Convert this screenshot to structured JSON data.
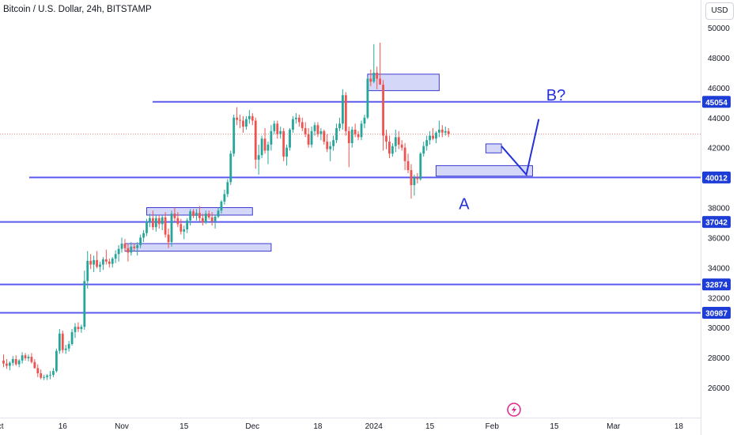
{
  "header": {
    "symbol": "Bitcoin / U.S. Dollar",
    "timeframe": "24h",
    "exchange": "BITSTAMP",
    "currency_button": "USD"
  },
  "colors": {
    "up": "#26a69a",
    "down": "#ef5350",
    "level_line": "#5b5bf0",
    "level_label_bg": "#1e3dd6",
    "annotation": "#2232d8",
    "zone_fill": "#c7caf7",
    "zone_stroke": "#3c3cd0",
    "current_price_line": "#ef5350",
    "axis_text": "#131722",
    "bolt_icon": "#e0218a"
  },
  "icons": {
    "bottom_marker": "lightning-bolt-icon"
  },
  "chart_data": {
    "type": "candlestick",
    "title": "",
    "ylim": [
      24500,
      51200
    ],
    "y_ticks": [
      26000,
      28000,
      30000,
      32000,
      34000,
      36000,
      38000,
      40000,
      42000,
      44000,
      46000,
      48000,
      50000
    ],
    "x_ticks": [
      "ct",
      "16",
      "Nov",
      "15",
      "Dec",
      "18",
      "2024",
      "15",
      "Feb",
      "15",
      "Mar",
      "18"
    ],
    "level_lines": [
      45054,
      40012,
      37042,
      32874,
      30987
    ],
    "current_price": 42900,
    "zones": [
      {
        "from_index": 117,
        "to_index": 140,
        "low": 45800,
        "high": 46900
      },
      {
        "from_index": 46,
        "to_index": 80,
        "low": 37500,
        "high": 38000
      },
      {
        "from_index": 39,
        "to_index": 86,
        "low": 35100,
        "high": 35600
      },
      {
        "from_index": 139,
        "to_index": 170,
        "low": 40100,
        "high": 40800
      },
      {
        "from_index": 155,
        "to_index": 160,
        "low": 41650,
        "high": 42250
      }
    ],
    "annotations": [
      "A",
      "B?"
    ],
    "projection_path": [
      [
        160,
        42100
      ],
      [
        168,
        40200
      ],
      [
        172,
        43900
      ]
    ],
    "candles": [
      [
        27800,
        28200,
        27350,
        27600
      ],
      [
        27600,
        27900,
        27250,
        27450
      ],
      [
        27450,
        27750,
        27150,
        27650
      ],
      [
        27650,
        28100,
        27450,
        27900
      ],
      [
        27900,
        28150,
        27450,
        27550
      ],
      [
        27550,
        27900,
        27350,
        27800
      ],
      [
        27800,
        28350,
        27600,
        28150
      ],
      [
        28150,
        28300,
        27800,
        27950
      ],
      [
        27950,
        28200,
        27750,
        28050
      ],
      [
        28050,
        28300,
        27600,
        27700
      ],
      [
        27700,
        27900,
        27250,
        27300
      ],
      [
        27300,
        27550,
        26700,
        26950
      ],
      [
        26950,
        27200,
        26550,
        26650
      ],
      [
        26650,
        26850,
        26500,
        26700
      ],
      [
        26700,
        26900,
        26500,
        26800
      ],
      [
        26800,
        27100,
        26550,
        26850
      ],
      [
        26850,
        27300,
        26700,
        27100
      ],
      [
        27100,
        28600,
        27000,
        28450
      ],
      [
        28450,
        29900,
        28250,
        29600
      ],
      [
        29600,
        29800,
        28300,
        28500
      ],
      [
        28500,
        28850,
        28250,
        28600
      ],
      [
        28600,
        29100,
        28400,
        28900
      ],
      [
        28900,
        29900,
        28800,
        29700
      ],
      [
        29700,
        30300,
        29300,
        30050
      ],
      [
        30050,
        30350,
        29700,
        29900
      ],
      [
        29900,
        30200,
        29650,
        30050
      ],
      [
        30050,
        33800,
        29850,
        33100
      ],
      [
        33100,
        35100,
        32600,
        34450
      ],
      [
        34450,
        34900,
        33900,
        34200
      ],
      [
        34200,
        34800,
        33700,
        34500
      ],
      [
        34500,
        35100,
        33950,
        34050
      ],
      [
        34050,
        34400,
        33700,
        34200
      ],
      [
        34200,
        34700,
        33850,
        34550
      ],
      [
        34550,
        35200,
        34200,
        34400
      ],
      [
        34400,
        34600,
        34000,
        34250
      ],
      [
        34250,
        34700,
        34000,
        34600
      ],
      [
        34600,
        35150,
        34300,
        34900
      ],
      [
        34900,
        35500,
        34400,
        35250
      ],
      [
        35250,
        36000,
        35000,
        35600
      ],
      [
        35600,
        35900,
        35050,
        35300
      ],
      [
        35300,
        35600,
        34400,
        35000
      ],
      [
        35000,
        35700,
        34800,
        35400
      ],
      [
        35400,
        35600,
        35100,
        35300
      ],
      [
        35300,
        35700,
        34800,
        35500
      ],
      [
        35500,
        36200,
        35300,
        36000
      ],
      [
        36000,
        36500,
        35700,
        36300
      ],
      [
        36300,
        37250,
        36100,
        37050
      ],
      [
        37050,
        37600,
        36700,
        37300
      ],
      [
        37300,
        37800,
        36500,
        36700
      ],
      [
        36700,
        37500,
        36400,
        37300
      ],
      [
        37300,
        37500,
        36600,
        36900
      ],
      [
        36900,
        37500,
        36500,
        37350
      ],
      [
        37350,
        37700,
        36000,
        36200
      ],
      [
        36200,
        36600,
        35300,
        35700
      ],
      [
        35700,
        37800,
        35400,
        37600
      ],
      [
        37600,
        38000,
        37100,
        37300
      ],
      [
        37300,
        37700,
        36700,
        36900
      ],
      [
        36900,
        37250,
        36200,
        36400
      ],
      [
        36400,
        36800,
        35900,
        36550
      ],
      [
        36550,
        37300,
        36300,
        37150
      ],
      [
        37150,
        37900,
        36800,
        37750
      ],
      [
        37750,
        37900,
        37300,
        37450
      ],
      [
        37450,
        37900,
        37150,
        37650
      ],
      [
        37650,
        38100,
        37100,
        37300
      ],
      [
        37300,
        37600,
        36800,
        37000
      ],
      [
        37000,
        37800,
        36900,
        37600
      ],
      [
        37600,
        37800,
        37200,
        37350
      ],
      [
        37350,
        37700,
        36800,
        37100
      ],
      [
        37100,
        37500,
        36600,
        37400
      ],
      [
        37400,
        38000,
        37300,
        37800
      ],
      [
        37800,
        38500,
        37600,
        38400
      ],
      [
        38400,
        39200,
        38200,
        38900
      ],
      [
        38900,
        39900,
        38700,
        39700
      ],
      [
        39700,
        41800,
        39500,
        41600
      ],
      [
        41600,
        44200,
        41400,
        44000
      ],
      [
        44000,
        44700,
        43500,
        43850
      ],
      [
        43850,
        44200,
        43300,
        43800
      ],
      [
        43800,
        44100,
        43000,
        43400
      ],
      [
        43400,
        44100,
        43200,
        43900
      ],
      [
        43900,
        44500,
        43600,
        44100
      ],
      [
        44100,
        44300,
        43500,
        43800
      ],
      [
        43800,
        44000,
        40600,
        41200
      ],
      [
        41200,
        42200,
        40200,
        41500
      ],
      [
        41500,
        42800,
        41300,
        42600
      ],
      [
        42600,
        43300,
        41600,
        41800
      ],
      [
        41800,
        42400,
        40900,
        42200
      ],
      [
        42200,
        43500,
        41800,
        43100
      ],
      [
        43100,
        43800,
        42900,
        43600
      ],
      [
        43600,
        43800,
        42600,
        42900
      ],
      [
        42900,
        43400,
        42600,
        43100
      ],
      [
        43100,
        43300,
        41100,
        41400
      ],
      [
        41400,
        42200,
        40800,
        42000
      ],
      [
        42000,
        43300,
        41800,
        43200
      ],
      [
        43200,
        44100,
        43000,
        43900
      ],
      [
        43900,
        44300,
        43600,
        44000
      ],
      [
        44000,
        44200,
        43400,
        43700
      ],
      [
        43700,
        44000,
        43100,
        43300
      ],
      [
        43300,
        43700,
        42700,
        42900
      ],
      [
        42900,
        43300,
        42000,
        42200
      ],
      [
        42200,
        43400,
        42000,
        43100
      ],
      [
        43100,
        43700,
        42800,
        43500
      ],
      [
        43500,
        43700,
        42700,
        42900
      ],
      [
        42900,
        43300,
        42500,
        43100
      ],
      [
        43100,
        43200,
        42200,
        42400
      ],
      [
        42400,
        42900,
        41700,
        41900
      ],
      [
        41900,
        42400,
        41100,
        42100
      ],
      [
        42100,
        42800,
        41800,
        42500
      ],
      [
        42500,
        43600,
        42300,
        43300
      ],
      [
        43300,
        44000,
        43100,
        43600
      ],
      [
        43600,
        45900,
        43200,
        45500
      ],
      [
        45500,
        45700,
        42800,
        43100
      ],
      [
        43100,
        43400,
        40700,
        42300
      ],
      [
        42300,
        43400,
        42000,
        43200
      ],
      [
        43200,
        43600,
        42700,
        42900
      ],
      [
        42900,
        43100,
        42500,
        42700
      ],
      [
        42700,
        43800,
        42500,
        43600
      ],
      [
        43600,
        44200,
        43300,
        44000
      ],
      [
        44000,
        46700,
        43900,
        46600
      ],
      [
        46600,
        47200,
        46100,
        46400
      ],
      [
        46400,
        48900,
        46300,
        47000
      ],
      [
        47000,
        47400,
        45900,
        46600
      ],
      [
        46600,
        49000,
        46400,
        46200
      ],
      [
        46200,
        46500,
        41800,
        42800
      ],
      [
        42800,
        43200,
        41900,
        42400
      ],
      [
        42400,
        42800,
        41300,
        41600
      ],
      [
        41600,
        42300,
        41400,
        42100
      ],
      [
        42100,
        43200,
        41700,
        42700
      ],
      [
        42700,
        43100,
        41900,
        42200
      ],
      [
        42200,
        42500,
        41800,
        42000
      ],
      [
        42000,
        42300,
        40500,
        41100
      ],
      [
        41100,
        41600,
        40300,
        40500
      ],
      [
        40500,
        40900,
        38600,
        39500
      ],
      [
        39500,
        40200,
        38800,
        40000
      ],
      [
        40000,
        40300,
        39600,
        39900
      ],
      [
        39900,
        41700,
        39800,
        41600
      ],
      [
        41600,
        42400,
        41400,
        42100
      ],
      [
        42100,
        42800,
        41800,
        42500
      ],
      [
        42500,
        43100,
        42200,
        42800
      ],
      [
        42800,
        43300,
        42500,
        42600
      ],
      [
        42600,
        43100,
        42300,
        43000
      ],
      [
        43000,
        43800,
        42700,
        43200
      ],
      [
        43200,
        43500,
        42700,
        43000
      ],
      [
        43000,
        43400,
        42800,
        43100
      ],
      [
        43100,
        43300,
        42700,
        42900
      ]
    ]
  }
}
